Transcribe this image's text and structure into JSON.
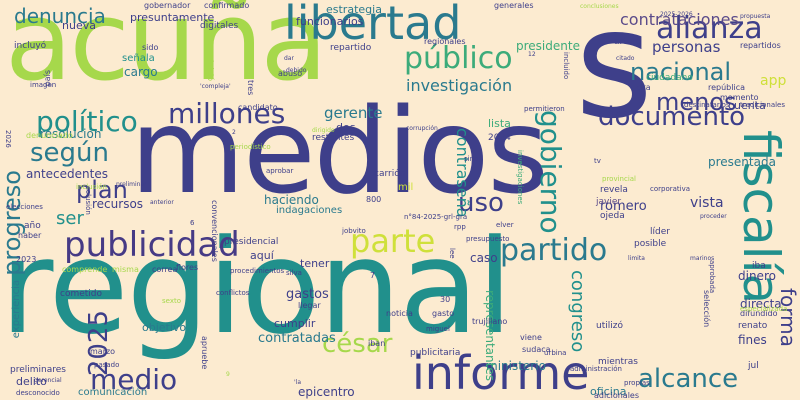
{
  "background": "#fcebd0",
  "palette": [
    "#3e3f8a",
    "#2a7a8e",
    "#21908c",
    "#3cab7a",
    "#28a07a",
    "#a6d84b",
    "#cfe03a",
    "#463a85",
    "#5b4b8a",
    "#8fcf61"
  ],
  "words": [
    "medios",
    "regional",
    "acuña",
    "s",
    "informe",
    "fiscalía",
    "libertad",
    "alianza",
    "publicidad",
    "parte",
    "partido",
    "público",
    "nacional",
    "millones",
    "documento",
    "gobierno",
    "político",
    "según",
    "medio",
    "alcance",
    "césar",
    "2025",
    "uso",
    "menos",
    "plan",
    "progreso",
    "forma",
    "denuncia",
    "contrataciones",
    "investigación",
    "personas",
    "contraseña",
    "gerente",
    "congreso",
    "gastos",
    "romero",
    "presidente",
    "presentada",
    "mil",
    "resolución",
    "contratadas",
    "epicentro",
    "ministerio",
    "representantes",
    "publicitaria",
    "comunicación",
    "oficina",
    "funcionarios",
    "estrategia",
    "presuntamente",
    "confirmado",
    "gobernador",
    "cargo",
    "señala",
    "incluyó",
    "nueva",
    "generales",
    "dinero",
    "directa",
    "fines",
    "caso",
    "objetivo",
    "cumplir",
    "tener",
    "aquí",
    "antecedentes",
    "recursos",
    "ser",
    "experiencia",
    "delito",
    "trujillano",
    "cuenta",
    "lista",
    "dos",
    "restantes",
    "haciendo",
    "indagaciones",
    "carrión",
    "revela",
    "javier",
    "ojeda",
    "líder",
    "posible",
    "mientras",
    "selección",
    "utilizó",
    "difundido",
    "renato",
    "jul",
    "iba",
    "app",
    "arturo",
    "república",
    "repartido",
    "repartidos",
    "regionales",
    "sido",
    "abuso",
    "candidato",
    "presidencial",
    "haber",
    "año",
    "marzo",
    "preliminares",
    "cometido",
    "viene",
    "sudaca",
    "gasto",
    "noticia",
    "2024",
    "30",
    "800",
    "7",
    "iban",
    "jobvito",
    "rpp",
    "elver",
    "presupuesto",
    "administración",
    "adicionales",
    "desconocido",
    "periodístico",
    "provincial",
    "corporativa",
    "especializada",
    "tradicionales",
    "destinatarios",
    "momento",
    "aprobada",
    "propias",
    "urbina",
    "miguel",
    "sexto",
    "correa",
    "flores",
    "silva",
    "llegar",
    "pasado",
    "comprende",
    "misma",
    "aprobar",
    "inclusión",
    "colusión",
    "convencionales",
    "permitieron",
    "cita",
    "ciudadano",
    "tres",
    "inició",
    "digitales",
    "2026",
    "denunciado",
    "elecciones",
    "imagen",
    "país",
    "apruebe",
    "2023",
    "12",
    "incluido",
    "n°84-2025-grl-gra",
    "sino",
    "conclusiones",
    "2025-2026",
    "propuesta",
    "citado",
    "marinos",
    "limita",
    "proceder",
    "debido",
    "dar",
    "lee",
    "investigaciones",
    "procedimientos",
    "6",
    "9",
    "preliminar",
    "gerencial",
    "dirigido",
    "conflictos",
    "corrupción",
    "'la",
    "tv",
    "vista",
    "'compleja'",
    "2",
    "anterior",
    "iniciado",
    "proyecto"
  ]
}
